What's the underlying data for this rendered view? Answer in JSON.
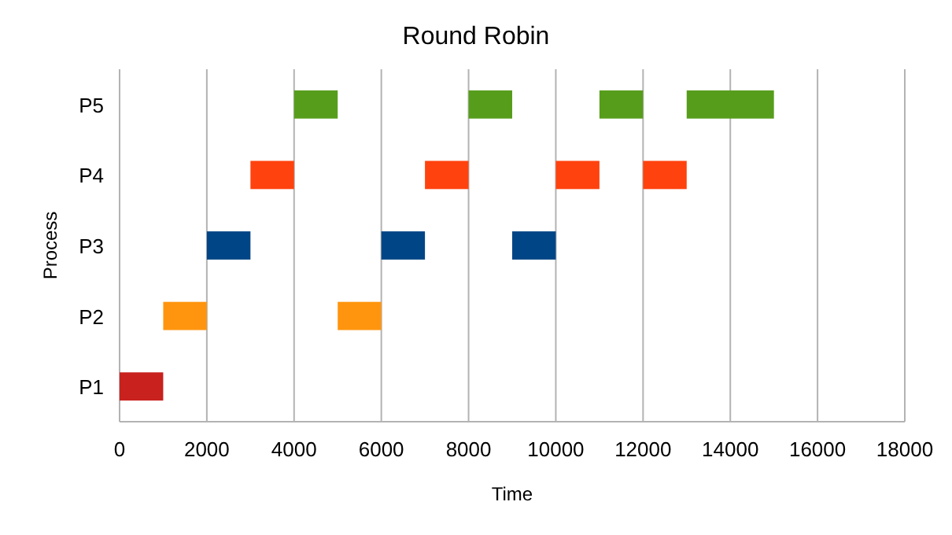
{
  "chart_data": {
    "type": "bar",
    "orientation": "horizontal",
    "title": "Round Robin",
    "xlabel": "Time",
    "ylabel": "Process",
    "categories": [
      "P5",
      "P4",
      "P3",
      "P2",
      "P1"
    ],
    "series": [
      {
        "values": [
          1000,
          1000,
          1000,
          1000,
          1000
        ],
        "base": [
          4000,
          3000,
          2000,
          1000,
          0
        ],
        "colors": [
          "#579d1c",
          "#ff420e",
          "#004586",
          "#ff950e",
          "#c9211e"
        ]
      },
      {
        "values": [
          1000,
          1000,
          1000,
          1000,
          null
        ],
        "base": [
          8000,
          7000,
          6000,
          5000,
          null
        ],
        "colors": [
          "#579d1c",
          "#ff420e",
          "#004586",
          "#ff950e",
          null
        ]
      },
      {
        "values": [
          1000,
          1000,
          1000,
          null,
          null
        ],
        "base": [
          11000,
          10000,
          9000,
          null,
          null
        ],
        "colors": [
          "#579d1c",
          "#ff420e",
          "#004586",
          null,
          null
        ]
      },
      {
        "values": [
          2000,
          1000,
          null,
          null,
          null
        ],
        "base": [
          13000,
          12000,
          null,
          null,
          null
        ],
        "colors": [
          "#579d1c",
          "#ff420e",
          null,
          null,
          null
        ]
      }
    ],
    "xlim": [
      0,
      18000
    ],
    "xticks": [
      0,
      2000,
      4000,
      6000,
      8000,
      10000,
      12000,
      14000,
      16000,
      18000
    ],
    "grid": "x"
  }
}
